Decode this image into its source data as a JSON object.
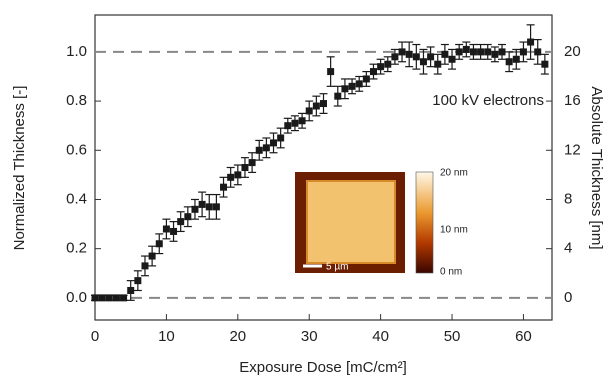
{
  "chart_data": {
    "type": "scatter",
    "xlabel": "Exposure Dose [mC/cm²]",
    "ylabel": "Normalized Thickness [-]",
    "y2label": "Absolute Thickness [nm]",
    "annotation": "100 kV electrons",
    "color": "#1a1a1a",
    "x": [
      0,
      1,
      2,
      3,
      4,
      5,
      6,
      7,
      8,
      9,
      10,
      11,
      12,
      13,
      14,
      15,
      16,
      17,
      18,
      19,
      20,
      21,
      22,
      23,
      24,
      25,
      26,
      27,
      28,
      29,
      30,
      31,
      32,
      33,
      34,
      35,
      36,
      37,
      38,
      39,
      40,
      41,
      42,
      43,
      44,
      45,
      46,
      47,
      48,
      49,
      50,
      51,
      52,
      53,
      54,
      55,
      56,
      57,
      58,
      59,
      60,
      61,
      62,
      63
    ],
    "values": [
      0,
      0,
      0,
      0,
      0,
      0.03,
      0.07,
      0.13,
      0.17,
      0.22,
      0.28,
      0.27,
      0.31,
      0.33,
      0.36,
      0.38,
      0.37,
      0.37,
      0.45,
      0.49,
      0.5,
      0.53,
      0.55,
      0.6,
      0.61,
      0.63,
      0.65,
      0.7,
      0.71,
      0.72,
      0.76,
      0.78,
      0.79,
      0.92,
      0.82,
      0.85,
      0.86,
      0.87,
      0.89,
      0.92,
      0.94,
      0.95,
      0.98,
      1.0,
      0.99,
      0.98,
      0.96,
      0.98,
      0.95,
      0.99,
      0.97,
      1.0,
      1.01,
      1.0,
      1.0,
      1.0,
      0.99,
      1.0,
      0.96,
      0.97,
      1.0,
      1.04,
      1.0,
      0.95
    ],
    "errors": [
      0.01,
      0.01,
      0.01,
      0.01,
      0.01,
      0.04,
      0.04,
      0.04,
      0.04,
      0.04,
      0.04,
      0.04,
      0.04,
      0.04,
      0.04,
      0.05,
      0.05,
      0.05,
      0.04,
      0.04,
      0.04,
      0.04,
      0.04,
      0.04,
      0.04,
      0.04,
      0.04,
      0.03,
      0.03,
      0.03,
      0.04,
      0.04,
      0.04,
      0.06,
      0.04,
      0.04,
      0.03,
      0.03,
      0.03,
      0.03,
      0.03,
      0.03,
      0.03,
      0.04,
      0.05,
      0.05,
      0.05,
      0.04,
      0.04,
      0.04,
      0.04,
      0.03,
      0.03,
      0.03,
      0.03,
      0.03,
      0.03,
      0.03,
      0.04,
      0.04,
      0.04,
      0.07,
      0.05,
      0.04
    ],
    "xlim": [
      0,
      64
    ],
    "xticks": [
      0,
      10,
      20,
      30,
      40,
      50,
      60
    ],
    "ylim": [
      -0.09,
      1.15
    ],
    "yticks": [
      {
        "value": 0,
        "label": "0.0"
      },
      0.2,
      0.4,
      0.6,
      0.8,
      {
        "value": 1,
        "label": "1.0"
      }
    ],
    "y2lim": [
      -1.8,
      23
    ],
    "y2ticks": [
      0,
      4,
      8,
      12,
      16,
      20
    ],
    "reference_lines": [
      0,
      1
    ],
    "inset": {
      "scale_bar": "5 µm",
      "colorbar_labels": [
        "20 nm",
        "10 nm",
        "0 nm"
      ]
    }
  }
}
